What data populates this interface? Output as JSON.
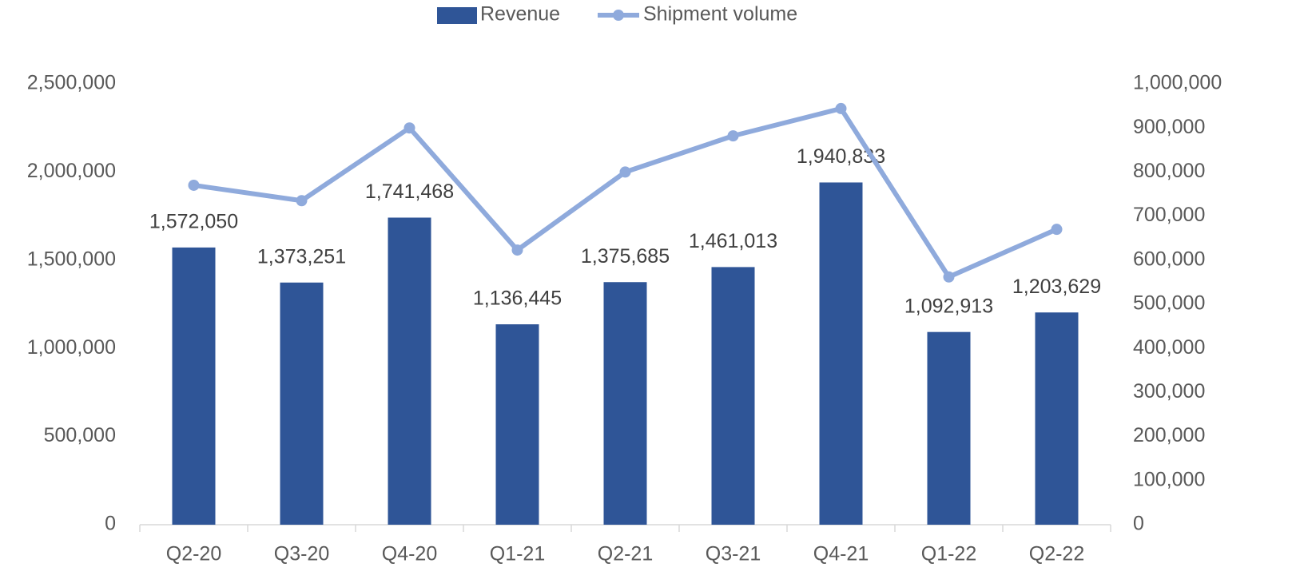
{
  "chart_data": {
    "type": "bar",
    "categories": [
      "Q2-20",
      "Q3-20",
      "Q4-20",
      "Q1-21",
      "Q2-21",
      "Q3-21",
      "Q4-21",
      "Q1-22",
      "Q2-22"
    ],
    "series": [
      {
        "name": "Revenue",
        "type": "bar",
        "color": "#2f5597",
        "values": [
          1572050,
          1373251,
          1741468,
          1136445,
          1375685,
          1461013,
          1940833,
          1092913,
          1203629
        ],
        "value_labels": [
          "1,572,050",
          "1,373,251",
          "1,741,468",
          "1,136,445",
          "1,375,685",
          "1,461,013",
          "1,940,833",
          "1,092,913",
          "1,203,629"
        ]
      },
      {
        "name": "Shipment volume",
        "type": "line",
        "axis": "y2",
        "color": "#8faadc",
        "values": [
          770000,
          735000,
          900000,
          623000,
          800000,
          882000,
          944000,
          562000,
          670000
        ]
      }
    ],
    "ylim": [
      0,
      2500000
    ],
    "yticks": [
      0,
      {
        "value": 500000,
        "label": "500,000"
      },
      {
        "value": 1000000,
        "label": "1,000,000"
      },
      {
        "value": 1500000,
        "label": "1,500,000"
      },
      {
        "value": 2000000,
        "label": "2,000,000"
      },
      {
        "value": 2500000,
        "label": "2,500,000"
      }
    ],
    "y2lim": [
      0,
      1000000
    ],
    "y2ticks": [
      0,
      {
        "value": 100000,
        "label": "100,000"
      },
      {
        "value": 200000,
        "label": "200,000"
      },
      {
        "value": 300000,
        "label": "300,000"
      },
      {
        "value": 400000,
        "label": "400,000"
      },
      {
        "value": 500000,
        "label": "500,000"
      },
      {
        "value": 600000,
        "label": "600,000"
      },
      {
        "value": 700000,
        "label": "700,000"
      },
      {
        "value": 800000,
        "label": "800,000"
      },
      {
        "value": 900000,
        "label": "900,000"
      },
      {
        "value": 1000000,
        "label": "1,000,000"
      }
    ],
    "grid": false,
    "legend": "top"
  }
}
